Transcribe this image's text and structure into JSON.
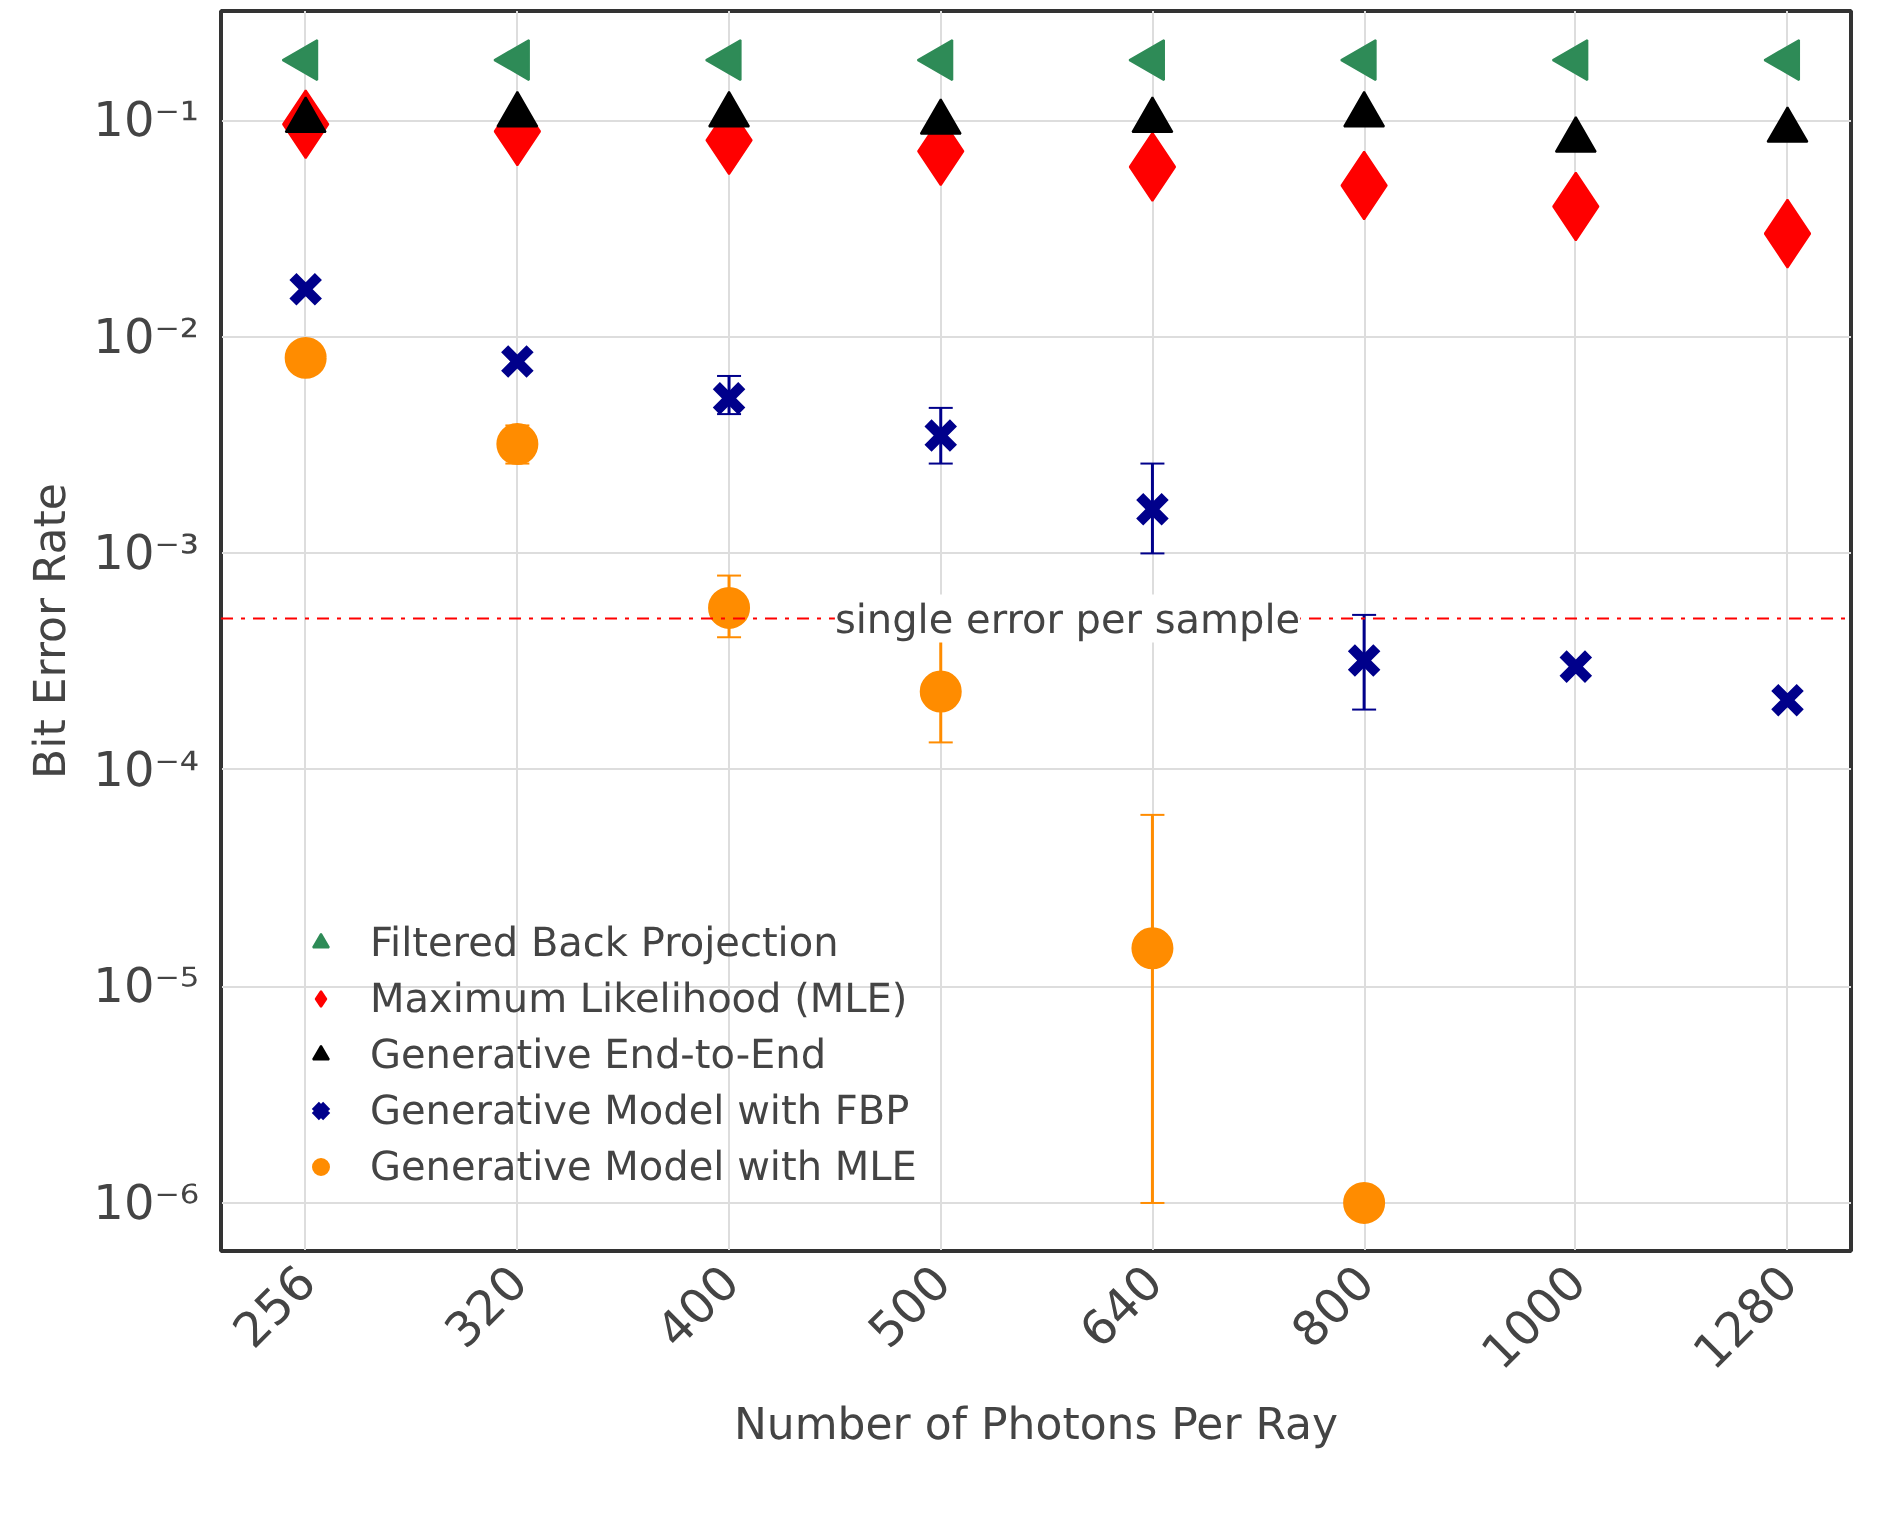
{
  "chart_data": {
    "type": "scatter",
    "xlabel": "Number of Photons Per Ray",
    "ylabel": "Bit Error Rate",
    "log": "y",
    "categories": [
      "256",
      "320",
      "400",
      "500",
      "640",
      "800",
      "1000",
      "1280"
    ],
    "ylim": [
      6e-07,
      0.32
    ],
    "yticks": [
      {
        "value": 1e-06,
        "label": "10⁻⁶"
      },
      {
        "value": 1e-05,
        "label": "10⁻⁵"
      },
      {
        "value": 0.0001,
        "label": "10⁻⁴"
      },
      {
        "value": 0.001,
        "label": "10⁻³"
      },
      {
        "value": 0.01,
        "label": "10⁻²"
      },
      {
        "value": 0.1,
        "label": "10⁻¹"
      }
    ],
    "grid": true,
    "legend": "bottom left",
    "ref_lines": [
      {
        "axis": "y",
        "value": 0.0005,
        "label": "single error per sample",
        "color": "#ff0000",
        "line_style": "dashdot"
      }
    ],
    "series": [
      {
        "name": "Filtered Back Projection",
        "color": "#2e8b57",
        "marker": "triangle_left",
        "values": [
          0.19,
          0.19,
          0.19,
          0.19,
          0.19,
          0.19,
          0.19,
          0.19
        ]
      },
      {
        "name": "Maximum Likelihood (MLE)",
        "color": "#ff0000",
        "marker": "diamond",
        "values": [
          0.096,
          0.089,
          0.081,
          0.072,
          0.061,
          0.05,
          0.04,
          0.03
        ]
      },
      {
        "name": "Generative End-to-End",
        "color": "#000000",
        "marker": "triangle",
        "values": [
          0.1,
          0.106,
          0.106,
          0.098,
          0.1,
          0.106,
          0.081,
          0.09
        ]
      },
      {
        "name": "Generative Model with FBP",
        "color": "#00008b",
        "marker": "cross",
        "values": [
          0.0166,
          0.0077,
          0.0052,
          0.0035,
          0.0016,
          0.00032,
          0.0003,
          0.00021
        ],
        "errors": [
          null,
          null,
          [
            0.0044,
            0.0066
          ],
          [
            0.0026,
            0.0047
          ],
          [
            0.001,
            0.0026
          ],
          [
            0.00019,
            0.00052
          ],
          null,
          null
        ]
      },
      {
        "name": "Generative Model with MLE",
        "color": "#ff8c00",
        "marker": "circle",
        "values": [
          0.008,
          0.0032,
          0.00056,
          0.00023,
          1.5e-05,
          1e-06,
          null,
          null
        ],
        "errors": [
          null,
          [
            0.0026,
            0.0039
          ],
          [
            0.00041,
            0.00079
          ],
          [
            0.000134,
            0.00041
          ],
          [
            1e-06,
            6.2e-05
          ],
          null,
          null,
          null
        ]
      }
    ]
  }
}
